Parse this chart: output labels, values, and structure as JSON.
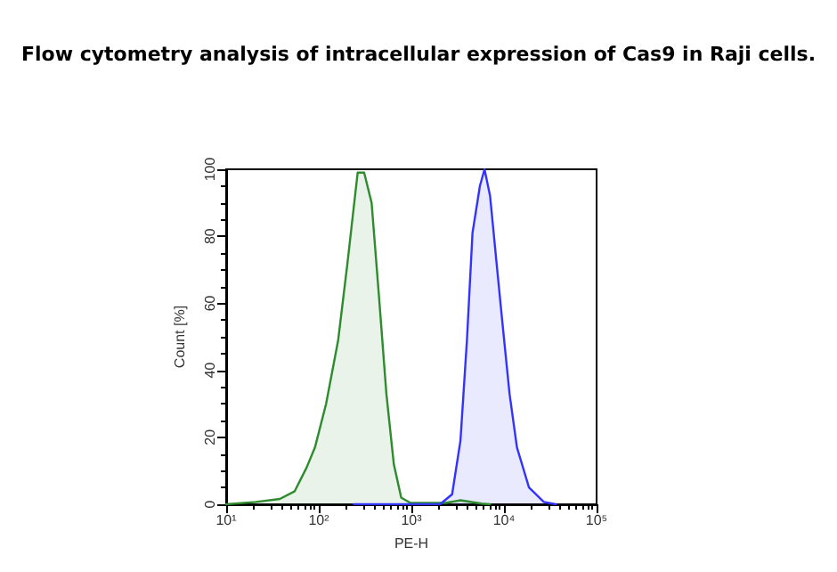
{
  "chart_data": {
    "type": "area",
    "title": "Flow cytometry analysis of intracellular expression of Cas9 in Raji cells.",
    "xlabel": "PE-H",
    "ylabel": "Count [%]",
    "log": "x",
    "grid": false,
    "marker": "none",
    "line_style": "solid",
    "xlim": [
      10,
      100000
    ],
    "xticks": [
      {
        "value": 10,
        "label": "10¹"
      },
      {
        "value": 100,
        "label": "10²"
      },
      {
        "value": 1000,
        "label": "10³"
      },
      {
        "value": 10000,
        "label": "10⁴"
      },
      {
        "value": 100000,
        "label": "10⁵"
      }
    ],
    "ylim": [
      0,
      100
    ],
    "yticks": [
      0,
      20,
      40,
      60,
      80,
      100
    ],
    "series": [
      {
        "color": "#2e8b2e",
        "x": [
          10,
          21,
          38,
          55,
          74,
          91,
          120,
          162,
          204,
          263,
          309,
          372,
          447,
          537,
          646,
          776,
          977,
          2344,
          3388,
          5754,
          7080
        ],
        "values": [
          0,
          0.7,
          1.6,
          3.9,
          11,
          17,
          30,
          49,
          72,
          99,
          99,
          90,
          62,
          33,
          12,
          2,
          0.4,
          0.4,
          1.2,
          0.2,
          0
        ]
      },
      {
        "color": "#3333ff",
        "x": [
          240,
          2042,
          2754,
          3388,
          3981,
          4571,
          5495,
          6166,
          7079,
          8318,
          9550,
          11480,
          13800,
          18620,
          26920,
          36310
        ],
        "values": [
          0,
          0,
          3,
          19,
          49,
          81,
          95,
          100,
          92,
          72,
          55,
          33,
          17,
          5,
          0.7,
          0
        ]
      }
    ]
  }
}
